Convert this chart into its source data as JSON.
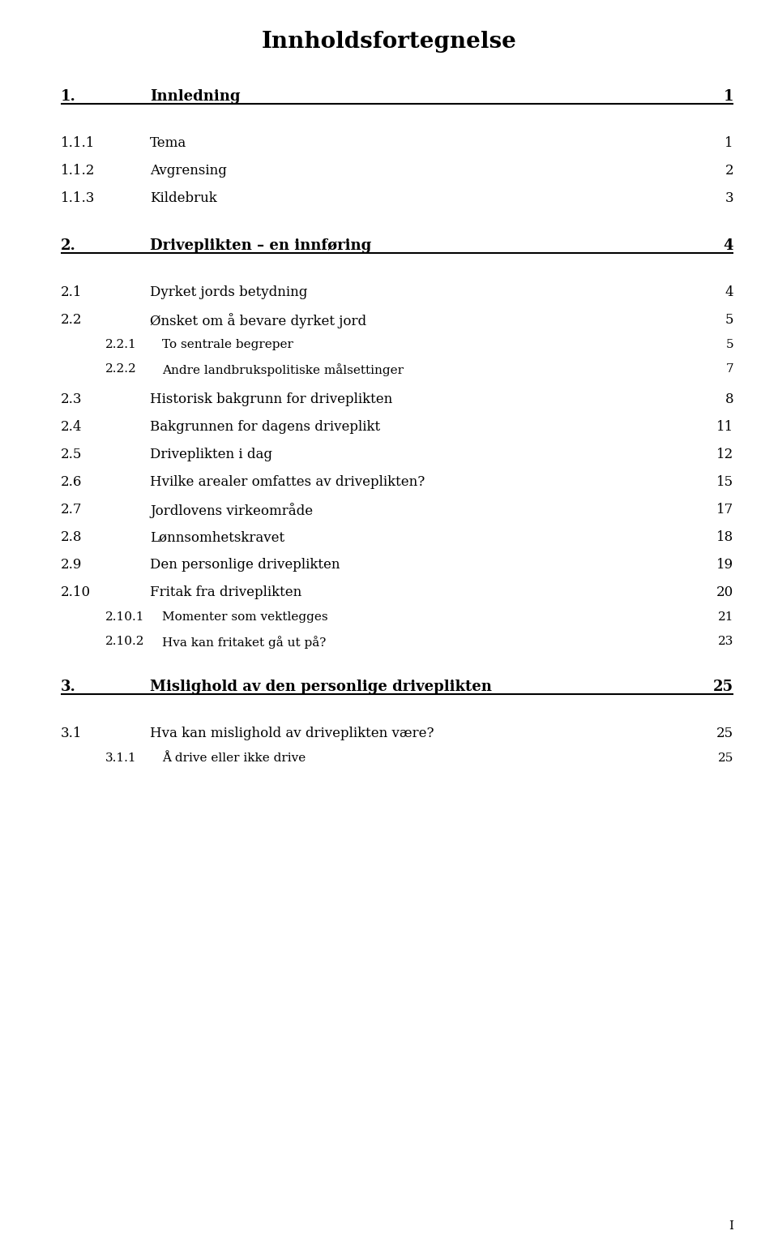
{
  "title": "Innholdsfortegnelse",
  "background_color": "#ffffff",
  "text_color": "#000000",
  "entries": [
    {
      "number": "1.",
      "text": "Innledning",
      "page": "1",
      "level": 0,
      "bold": true
    },
    {
      "number": "1.1.1",
      "text": "Tema",
      "page": "1",
      "level": 1,
      "bold": false
    },
    {
      "number": "1.1.2",
      "text": "Avgrensing",
      "page": "2",
      "level": 1,
      "bold": false
    },
    {
      "number": "1.1.3",
      "text": "Kildebruk",
      "page": "3",
      "level": 1,
      "bold": false
    },
    {
      "number": "2.",
      "text": "Driveplikten – en innføring",
      "page": "4",
      "level": 0,
      "bold": true
    },
    {
      "number": "2.1",
      "text": "Dyrket jords betydning",
      "page": "4",
      "level": 1,
      "bold": false
    },
    {
      "number": "2.2",
      "text": "Ønsket om å bevare dyrket jord",
      "page": "5",
      "level": 1,
      "bold": false
    },
    {
      "number": "2.2.1",
      "text": "To sentrale begreper",
      "page": "5",
      "level": 2,
      "bold": false
    },
    {
      "number": "2.2.2",
      "text": "Andre landbrukspolitiske målsettinger",
      "page": "7",
      "level": 2,
      "bold": false
    },
    {
      "number": "2.3",
      "text": "Historisk bakgrunn for driveplikten",
      "page": "8",
      "level": 1,
      "bold": false
    },
    {
      "number": "2.4",
      "text": "Bakgrunnen for dagens driveplikt",
      "page": "11",
      "level": 1,
      "bold": false
    },
    {
      "number": "2.5",
      "text": "Driveplikten i dag",
      "page": "12",
      "level": 1,
      "bold": false
    },
    {
      "number": "2.6",
      "text": "Hvilke arealer omfattes av driveplikten?",
      "page": "15",
      "level": 1,
      "bold": false
    },
    {
      "number": "2.7",
      "text": "Jordlovens virkeområde",
      "page": "17",
      "level": 1,
      "bold": false
    },
    {
      "number": "2.8",
      "text": "Lønnsomhetskravet",
      "page": "18",
      "level": 1,
      "bold": false
    },
    {
      "number": "2.9",
      "text": "Den personlige driveplikten",
      "page": "19",
      "level": 1,
      "bold": false
    },
    {
      "number": "2.10",
      "text": "Fritak fra driveplikten",
      "page": "20",
      "level": 1,
      "bold": false
    },
    {
      "number": "2.10.1",
      "text": "Momenter som vektlegges",
      "page": "21",
      "level": 2,
      "bold": false
    },
    {
      "number": "2.10.2",
      "text": "Hva kan fritaket gå ut på?",
      "page": "23",
      "level": 2,
      "bold": false
    },
    {
      "number": "3.",
      "text": "Mislighold av den personlige driveplikten",
      "page": "25",
      "level": 0,
      "bold": true
    },
    {
      "number": "3.1",
      "text": "Hva kan mislighold av driveplikten være?",
      "page": "25",
      "level": 1,
      "bold": false
    },
    {
      "number": "3.1.1",
      "text": "Å drive eller ikke drive",
      "page": "25",
      "level": 2,
      "bold": false
    }
  ],
  "footer_text": "I",
  "title_fontsize": 20,
  "level0_fontsize": 13,
  "level1_fontsize": 12,
  "level2_fontsize": 11
}
